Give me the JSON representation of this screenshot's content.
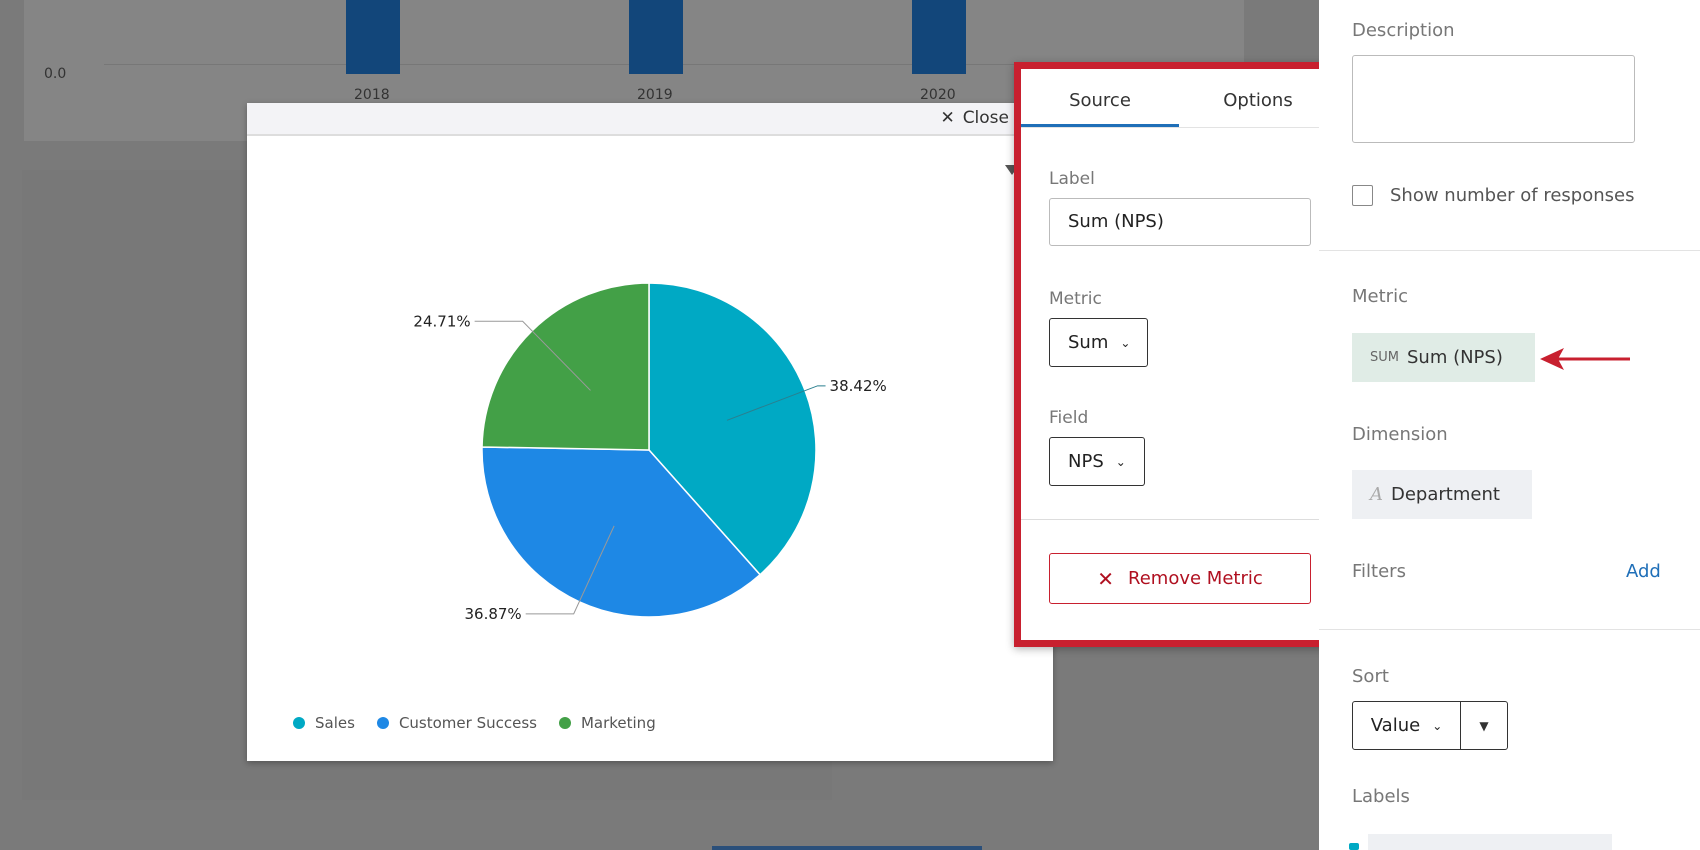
{
  "background_chart": {
    "zero_tick": "0.0",
    "years": [
      "2018",
      "2019",
      "2020"
    ],
    "bar_color": "#12467a"
  },
  "modal": {
    "close_label": "Close",
    "close_icon": "x-icon",
    "filter_icon": "filter-icon"
  },
  "chart_data": {
    "type": "pie",
    "categories": [
      "Sales",
      "Customer Success",
      "Marketing"
    ],
    "values": [
      38.42,
      36.87,
      24.71
    ],
    "labels": [
      "38.42%",
      "36.87%",
      "24.71%"
    ],
    "colors": [
      "#00a9c4",
      "#1e88e5",
      "#43a047"
    ],
    "legend_placement": "bottom-left"
  },
  "popover": {
    "tabs": [
      {
        "label": "Source",
        "active": true
      },
      {
        "label": "Options",
        "active": false
      }
    ],
    "label_heading": "Label",
    "label_value": "Sum (NPS)",
    "metric_heading": "Metric",
    "metric_value": "Sum",
    "field_heading": "Field",
    "field_value": "NPS",
    "remove_label": "Remove Metric",
    "accent": "#c8202f"
  },
  "panel": {
    "description_heading": "Description",
    "show_responses_label": "Show number of responses",
    "metric_heading": "Metric",
    "metric_chip_tag": "SUM",
    "metric_chip_label": "Sum (NPS)",
    "dimension_heading": "Dimension",
    "dimension_chip_label": "Department",
    "filters_heading": "Filters",
    "filters_add": "Add",
    "sort_heading": "Sort",
    "sort_value": "Value",
    "labels_heading": "Labels"
  }
}
